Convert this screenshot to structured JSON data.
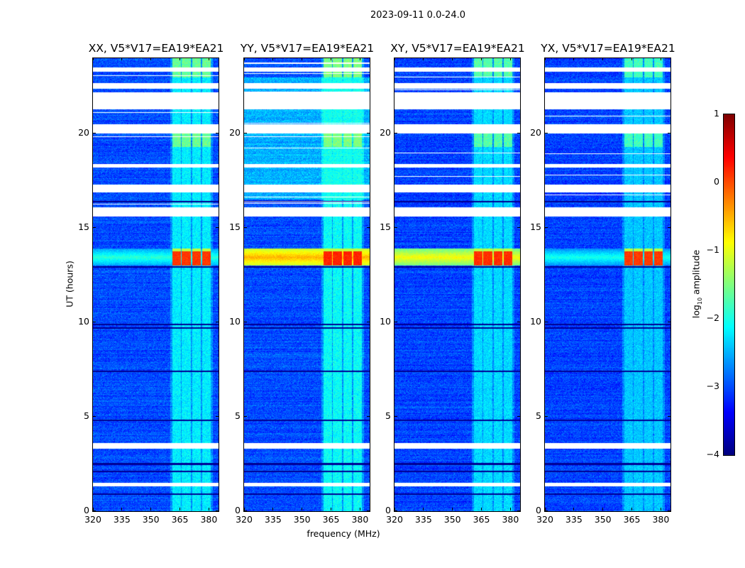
{
  "chart_data": {
    "type": "heatmap",
    "title": "2023-09-11 0.0-24.0",
    "xlabel": "frequency (MHz)",
    "ylabel": "UT (hours)",
    "xlim": [
      320,
      385
    ],
    "ylim": [
      0,
      24
    ],
    "xticks": [
      "320",
      "335",
      "350",
      "365",
      "380"
    ],
    "yticks": [
      "0",
      "5",
      "10",
      "15",
      "20"
    ],
    "colorbar": {
      "label_prefix": "log",
      "label_sub": "10",
      "label_suffix": " amplitude",
      "range": [
        -4,
        1
      ],
      "ticks": [
        "1",
        "0",
        "−1",
        "−2",
        "−3",
        "−4"
      ],
      "colormap": "jet"
    },
    "flagged_hours": [
      [
        21.3,
        22.2
      ],
      [
        20.0,
        20.5
      ],
      [
        16.9,
        17.3
      ],
      [
        15.6,
        16.1
      ],
      [
        22.4,
        22.7
      ],
      [
        3.3,
        3.6
      ],
      [
        1.3,
        1.5
      ],
      [
        23.3,
        23.5
      ],
      [
        18.2,
        18.4
      ]
    ],
    "dark_rows_hours": [
      12.95,
      9.9,
      9.7,
      7.4,
      2.5,
      2.1,
      0.9,
      16.4,
      4.8
    ],
    "bright_channels_mhz": [
      [
        361,
        365.4
      ],
      [
        366,
        370.5
      ],
      [
        371.3,
        375.7
      ],
      [
        376.4,
        380.8
      ]
    ],
    "rfi_event_hours": [
      13.0,
      13.9
    ],
    "panels": [
      {
        "title": "XX, V5*V17=EA19*EA21",
        "background": -3.0,
        "channel_level": -2.2,
        "event_channel_level": 0.1,
        "event_band_level": -1.9,
        "upper_offset": 0.0
      },
      {
        "title": "YY, V5*V17=EA19*EA21",
        "background": -3.0,
        "channel_level": -2.1,
        "event_channel_level": 0.2,
        "event_band_level": -0.5,
        "upper_offset": 0.5
      },
      {
        "title": "XY, V5*V17=EA19*EA21",
        "background": -3.05,
        "channel_level": -2.3,
        "event_channel_level": 0.15,
        "event_band_level": -0.9,
        "upper_offset": 0.0
      },
      {
        "title": "YX, V5*V17=EA19*EA21",
        "background": -3.05,
        "channel_level": -2.4,
        "event_channel_level": 0.1,
        "event_band_level": -2.0,
        "upper_offset": 0.0
      }
    ]
  }
}
